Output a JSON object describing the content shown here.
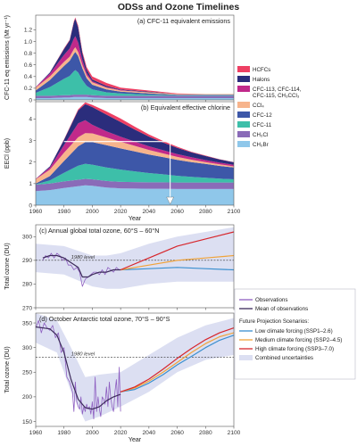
{
  "figure_title": "ODSs and Ozone Timelines",
  "colors": {
    "HCFCs": "#ee3f63",
    "Halons": "#2b2d7c",
    "CFC-113, CFC-114, CFC-115, CH3CCl3": "#c1298a",
    "CCl4": "#f7b48c",
    "CFC-12": "#3d57a8",
    "CFC-11": "#3dbfa9",
    "CH3Cl": "#8a6bb8",
    "CH3Br": "#8fc7ea",
    "observations": "#8e5fc1",
    "mean_observations": "#3c2a5a",
    "ssp126": "#3a8fcf",
    "ssp245": "#f0a33a",
    "ssp370": "#d7262c",
    "uncertainty": "#dcdff2"
  },
  "chart_data": [
    {
      "id": "a",
      "type": "area",
      "title": "(a) CFC-11 equivalent emissions",
      "ylabel": "CFC-11 eq emissions (Mt yr⁻¹)",
      "xlim": [
        1960,
        2100
      ],
      "ylim": [
        0,
        1.45
      ],
      "yticks": [
        0,
        0.2,
        0.4,
        0.6,
        0.8,
        1.0,
        1.2
      ],
      "x": [
        1960,
        1970,
        1980,
        1984,
        1987,
        1988,
        1990,
        1993,
        1996,
        2000,
        2010,
        2020,
        2040,
        2060,
        2080,
        2100
      ],
      "series": [
        {
          "name": "CH3Br",
          "values": [
            0.03,
            0.03,
            0.04,
            0.04,
            0.05,
            0.05,
            0.05,
            0.05,
            0.05,
            0.04,
            0.03,
            0.03,
            0.03,
            0.03,
            0.03,
            0.03
          ]
        },
        {
          "name": "CH3Cl",
          "values": [
            0.04,
            0.04,
            0.04,
            0.04,
            0.04,
            0.04,
            0.04,
            0.04,
            0.04,
            0.04,
            0.04,
            0.04,
            0.04,
            0.04,
            0.04,
            0.04
          ]
        },
        {
          "name": "CFC-11",
          "values": [
            0.05,
            0.15,
            0.28,
            0.33,
            0.4,
            0.42,
            0.38,
            0.25,
            0.15,
            0.1,
            0.06,
            0.04,
            0.02,
            0.01,
            0.01,
            0.01
          ]
        },
        {
          "name": "CFC-12",
          "values": [
            0.04,
            0.12,
            0.22,
            0.26,
            0.3,
            0.31,
            0.28,
            0.2,
            0.13,
            0.08,
            0.05,
            0.03,
            0.02,
            0.01,
            0.01,
            0.01
          ]
        },
        {
          "name": "CCl4",
          "values": [
            0.05,
            0.06,
            0.07,
            0.07,
            0.08,
            0.08,
            0.07,
            0.06,
            0.05,
            0.04,
            0.03,
            0.02,
            0.02,
            0.01,
            0.01,
            0.01
          ]
        },
        {
          "name": "CFC-113, CFC-114, CFC-115, CH3CCl3",
          "values": [
            0.01,
            0.05,
            0.12,
            0.14,
            0.18,
            0.19,
            0.16,
            0.08,
            0.04,
            0.02,
            0.01,
            0.01,
            0.0,
            0.0,
            0.0,
            0.0
          ]
        },
        {
          "name": "Halons",
          "values": [
            0.0,
            0.02,
            0.1,
            0.14,
            0.28,
            0.3,
            0.26,
            0.12,
            0.06,
            0.03,
            0.02,
            0.01,
            0.01,
            0.0,
            0.0,
            0.0
          ]
        },
        {
          "name": "HCFCs",
          "values": [
            0.0,
            0.0,
            0.01,
            0.01,
            0.02,
            0.02,
            0.03,
            0.03,
            0.04,
            0.05,
            0.05,
            0.03,
            0.02,
            0.01,
            0.0,
            0.0
          ]
        }
      ]
    },
    {
      "id": "b",
      "type": "area",
      "title": "(b) Equivalent effective chlorine",
      "ylabel": "EECl (ppb)",
      "xlabel": "Year",
      "xlim": [
        1960,
        2100
      ],
      "ylim": [
        0,
        4.8
      ],
      "yticks": [
        0,
        1,
        2,
        3,
        4
      ],
      "xticks": [
        1960,
        1980,
        2000,
        2020,
        2040,
        2060,
        2080,
        2100
      ],
      "x": [
        1960,
        1970,
        1980,
        1990,
        1995,
        2000,
        2010,
        2020,
        2030,
        2040,
        2050,
        2060,
        2070,
        2080,
        2090,
        2100
      ],
      "series": [
        {
          "name": "CH3Br",
          "values": [
            0.65,
            0.7,
            0.8,
            0.88,
            0.92,
            0.9,
            0.82,
            0.78,
            0.77,
            0.76,
            0.76,
            0.75,
            0.75,
            0.75,
            0.75,
            0.75
          ]
        },
        {
          "name": "CH3Cl",
          "values": [
            0.3,
            0.3,
            0.3,
            0.3,
            0.3,
            0.3,
            0.3,
            0.3,
            0.3,
            0.3,
            0.3,
            0.3,
            0.3,
            0.3,
            0.3,
            0.3
          ]
        },
        {
          "name": "CFC-11",
          "values": [
            0.02,
            0.15,
            0.4,
            0.65,
            0.7,
            0.68,
            0.63,
            0.57,
            0.5,
            0.43,
            0.37,
            0.31,
            0.26,
            0.22,
            0.18,
            0.15
          ]
        },
        {
          "name": "CFC-12",
          "values": [
            0.03,
            0.2,
            0.55,
            0.9,
            1.0,
            1.05,
            1.03,
            0.98,
            0.92,
            0.86,
            0.8,
            0.74,
            0.69,
            0.64,
            0.59,
            0.55
          ]
        },
        {
          "name": "CCl4",
          "values": [
            0.2,
            0.3,
            0.38,
            0.42,
            0.42,
            0.4,
            0.36,
            0.31,
            0.26,
            0.21,
            0.17,
            0.14,
            0.11,
            0.09,
            0.07,
            0.05
          ]
        },
        {
          "name": "CFC-113, CFC-114, CFC-115, CH3CCl3",
          "values": [
            0.02,
            0.1,
            0.35,
            0.65,
            0.6,
            0.4,
            0.28,
            0.24,
            0.2,
            0.17,
            0.15,
            0.13,
            0.11,
            0.09,
            0.08,
            0.07
          ]
        },
        {
          "name": "Halons",
          "values": [
            0.0,
            0.05,
            0.25,
            0.6,
            0.75,
            0.82,
            0.78,
            0.68,
            0.56,
            0.45,
            0.36,
            0.29,
            0.23,
            0.19,
            0.15,
            0.12
          ]
        },
        {
          "name": "HCFCs",
          "values": [
            0.0,
            0.0,
            0.02,
            0.05,
            0.08,
            0.1,
            0.15,
            0.16,
            0.13,
            0.1,
            0.07,
            0.05,
            0.03,
            0.02,
            0.01,
            0.01
          ]
        }
      ],
      "annotation": {
        "level_value": 2.95,
        "from_year": 1980,
        "to_year": 2055
      }
    },
    {
      "id": "c",
      "type": "line",
      "title": "(c) Annual global total ozone, 60°S – 60°N",
      "ylabel": "Total ozone (DU)",
      "xlim": [
        1960,
        2100
      ],
      "ylim": [
        270,
        305
      ],
      "yticks": [
        270,
        280,
        290,
        300
      ],
      "level_label": "1980 level",
      "level_value": 290,
      "band": {
        "x": [
          1960,
          1980,
          2000,
          2010,
          2020,
          2040,
          2060,
          2080,
          2100
        ],
        "lower": [
          285,
          284,
          279,
          278,
          278,
          280,
          281,
          281,
          281
        ],
        "upper": [
          297,
          296,
          292,
          292,
          293,
          297,
          300,
          302,
          304
        ]
      },
      "series": [
        {
          "name": "Observations",
          "x": [
            1965,
            1967,
            1969,
            1971,
            1973,
            1975,
            1977,
            1979,
            1981,
            1983,
            1985,
            1987,
            1989,
            1991,
            1993,
            1995,
            1997,
            1999,
            2001,
            2003,
            2005,
            2007,
            2009,
            2011,
            2013,
            2015,
            2017,
            2019
          ],
          "values": [
            290,
            292,
            291,
            293,
            291,
            293,
            292,
            290,
            291,
            288,
            288,
            286,
            287,
            285,
            279,
            282,
            283,
            284,
            285,
            285,
            284,
            286,
            284,
            287,
            286,
            285,
            287,
            286
          ]
        },
        {
          "name": "Mean of observations",
          "x": [
            1965,
            1970,
            1975,
            1980,
            1985,
            1990,
            1993,
            1997,
            2000,
            2005,
            2010,
            2015,
            2020
          ],
          "values": [
            291,
            292,
            292,
            291,
            289,
            287,
            283,
            283,
            284,
            285,
            285,
            286,
            286
          ]
        },
        {
          "name": "Low climate forcing (SSP1–2.6)",
          "x": [
            2020,
            2040,
            2060,
            2080,
            2100
          ],
          "values": [
            286,
            286.5,
            287,
            286.5,
            286
          ]
        },
        {
          "name": "Medium climate forcing (SSP2–4.5)",
          "x": [
            2020,
            2040,
            2060,
            2080,
            2100
          ],
          "values": [
            286,
            288,
            290,
            291,
            292
          ]
        },
        {
          "name": "High climate forcing (SSP3–7.0)",
          "x": [
            2020,
            2040,
            2060,
            2080,
            2100
          ],
          "values": [
            286,
            291,
            296,
            299,
            302
          ]
        }
      ]
    },
    {
      "id": "d",
      "type": "line",
      "title": "(d) October Antarctic total ozone, 70°S – 90°S",
      "ylabel": "Total ozone (DU)",
      "xlabel": "Year",
      "xlim": [
        1960,
        2100
      ],
      "ylim": [
        140,
        370
      ],
      "yticks": [
        150,
        200,
        250,
        300,
        350
      ],
      "xticks": [
        1960,
        1980,
        2000,
        2020,
        2040,
        2060,
        2080,
        2100
      ],
      "level_label": "1980 level",
      "level_value": 280,
      "band": {
        "x": [
          1960,
          1975,
          1985,
          1995,
          2005,
          2020,
          2040,
          2060,
          2080,
          2100
        ],
        "lower": [
          310,
          290,
          210,
          150,
          160,
          180,
          210,
          250,
          275,
          285
        ],
        "upper": [
          370,
          355,
          300,
          240,
          245,
          250,
          285,
          320,
          345,
          360
        ]
      },
      "series": [
        {
          "name": "Observations",
          "x": [
            1960,
            1962,
            1964,
            1966,
            1968,
            1970,
            1972,
            1974,
            1976,
            1978,
            1980,
            1982,
            1984,
            1986,
            1987,
            1988,
            1989,
            1990,
            1991,
            1992,
            1993,
            1994,
            1995,
            1996,
            1997,
            1998,
            1999,
            2000,
            2001,
            2002,
            2003,
            2004,
            2005,
            2006,
            2007,
            2008,
            2009,
            2010,
            2011,
            2012,
            2013,
            2014,
            2015,
            2016,
            2017,
            2018,
            2019,
            2020
          ],
          "values": [
            340,
            355,
            330,
            350,
            340,
            335,
            345,
            320,
            330,
            290,
            300,
            240,
            230,
            210,
            170,
            230,
            190,
            180,
            175,
            200,
            165,
            180,
            170,
            185,
            175,
            180,
            165,
            190,
            155,
            240,
            170,
            200,
            175,
            160,
            200,
            195,
            185,
            220,
            180,
            230,
            200,
            180,
            170,
            210,
            235,
            180,
            260,
            170
          ]
        },
        {
          "name": "Mean of observations",
          "x": [
            1960,
            1970,
            1975,
            1980,
            1985,
            1990,
            1995,
            2000,
            2005,
            2010,
            2015,
            2020
          ],
          "values": [
            342,
            338,
            325,
            290,
            235,
            195,
            178,
            175,
            180,
            192,
            200,
            205
          ]
        },
        {
          "name": "Low climate forcing (SSP1–2.6)",
          "x": [
            2020,
            2030,
            2040,
            2050,
            2060,
            2070,
            2080,
            2090,
            2100
          ],
          "values": [
            210,
            215,
            228,
            245,
            265,
            282,
            300,
            315,
            325
          ]
        },
        {
          "name": "Medium climate forcing (SSP2–4.5)",
          "x": [
            2020,
            2030,
            2040,
            2050,
            2060,
            2070,
            2080,
            2090,
            2100
          ],
          "values": [
            210,
            218,
            232,
            250,
            270,
            290,
            308,
            322,
            330
          ]
        },
        {
          "name": "High climate forcing (SSP3–7.0)",
          "x": [
            2020,
            2030,
            2040,
            2050,
            2060,
            2070,
            2080,
            2090,
            2100
          ],
          "values": [
            210,
            220,
            236,
            256,
            278,
            298,
            316,
            330,
            340
          ]
        }
      ]
    }
  ],
  "legend_top": {
    "items": [
      {
        "label": "HCFCs",
        "key": "HCFCs"
      },
      {
        "label": "Halons",
        "key": "Halons"
      },
      {
        "label": "CFC-113, CFC-114,",
        "label2": "CFC-115, CH₃CCl₃",
        "key": "CFC-113, CFC-114, CFC-115, CH3CCl3"
      },
      {
        "label": "CCl₄",
        "key": "CCl4"
      },
      {
        "label": "CFC-12",
        "key": "CFC-12"
      },
      {
        "label": "CFC-11",
        "key": "CFC-11"
      },
      {
        "label": "CH₃Cl",
        "key": "CH3Cl"
      },
      {
        "label": "CH₃Br",
        "key": "CH3Br"
      }
    ]
  },
  "legend_bottom": {
    "observations": "Observations",
    "mean": "Mean of observations",
    "heading": "Future Projection Scenarios:",
    "low": "Low climate forcing (SSP1–2.6)",
    "medium": "Medium climate forcing (SSP2–4.5)",
    "high": "High climate forcing (SSP3–7.0)",
    "uncertainty": "Combined uncertainties"
  }
}
